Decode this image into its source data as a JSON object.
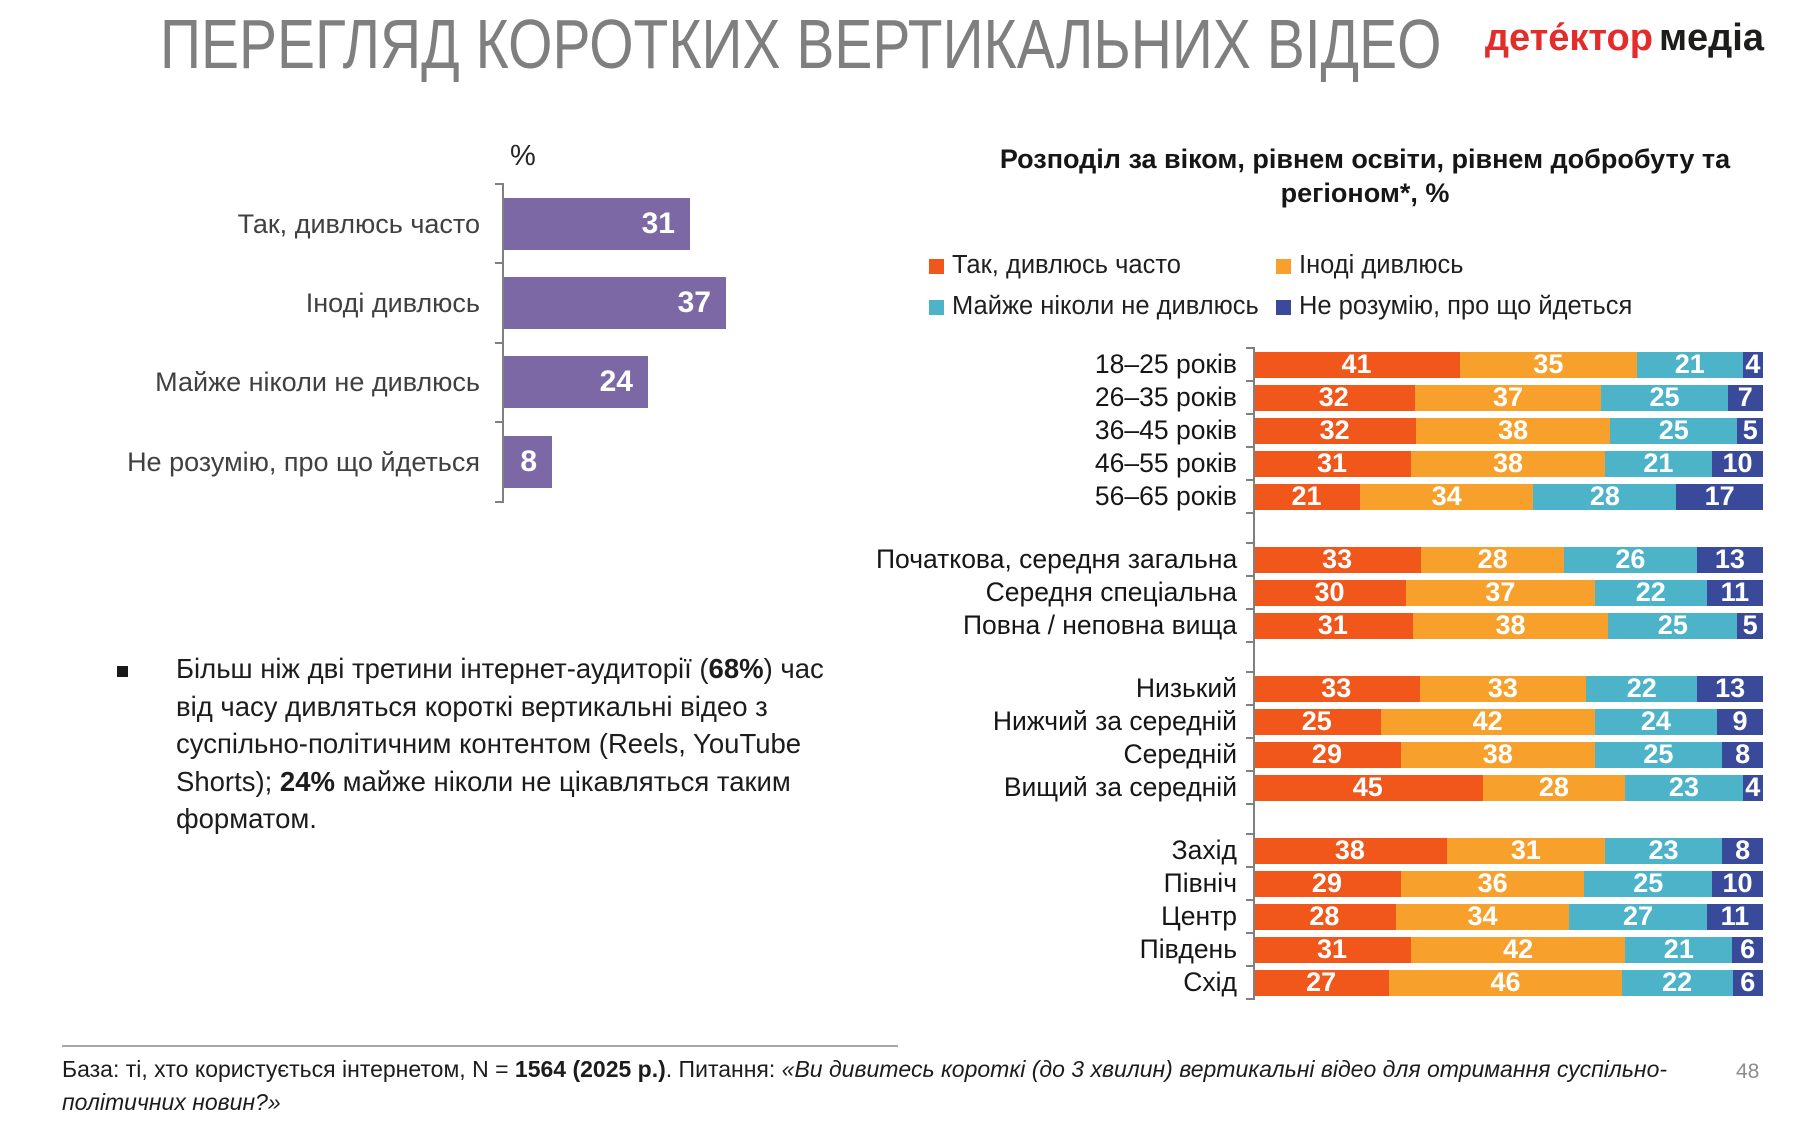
{
  "header": {
    "title": "ПЕРЕГЛЯД КОРОТКИХ ВЕРТИКАЛЬНИХ ВІДЕО",
    "logo": {
      "red_text": "дете́ктор",
      "black_text": "медіа",
      "red": "#e32c2c",
      "black": "#1d1d1b"
    }
  },
  "chart_data": [
    {
      "type": "bar",
      "orientation": "horizontal",
      "axis_label": "%",
      "categories": [
        "Так, дивлюсь часто",
        "Іноді дивлюсь",
        "Майже ніколи не дивлюсь",
        "Не розумію, про що йдеться"
      ],
      "values": [
        31,
        37,
        24,
        8
      ],
      "bar_color": "#7d68a6",
      "value_label_color": "#ffffff",
      "xlim": [
        0,
        42
      ],
      "grid": false
    },
    {
      "type": "bar",
      "subtype": "stacked-horizontal",
      "title": "Розподіл за віком, рівнем освіти, рівнем добробуту та регіоном*, %",
      "legend_position": "top",
      "xlim": [
        0,
        100
      ],
      "series": [
        {
          "name": "Так, дивлюсь часто",
          "color": "#f1561b"
        },
        {
          "name": "Іноді дивлюсь",
          "color": "#f8a02c"
        },
        {
          "name": "Майже ніколи не дивлюсь",
          "color": "#4db3c9"
        },
        {
          "name": "Не розумію, про що йдеться",
          "color": "#3a4a9b"
        }
      ],
      "groups": [
        {
          "categories": [
            "18–25 років",
            "26–35 років",
            "36–45 років",
            "46–55 років",
            "56–65 років"
          ],
          "values": [
            [
              41,
              35,
              21,
              4
            ],
            [
              32,
              37,
              25,
              7
            ],
            [
              32,
              38,
              25,
              5
            ],
            [
              31,
              38,
              21,
              10
            ],
            [
              21,
              34,
              28,
              17
            ]
          ]
        },
        {
          "categories": [
            "Початкова, середня загальна",
            "Середня спеціальна",
            "Повна / неповна  вища"
          ],
          "values": [
            [
              33,
              28,
              26,
              13
            ],
            [
              30,
              37,
              22,
              11
            ],
            [
              31,
              38,
              25,
              5
            ]
          ]
        },
        {
          "categories": [
            "Низький",
            "Нижчий за середній",
            "Середній",
            "Вищий за середній"
          ],
          "values": [
            [
              33,
              33,
              22,
              13
            ],
            [
              25,
              42,
              24,
              9
            ],
            [
              29,
              38,
              25,
              8
            ],
            [
              45,
              28,
              23,
              4
            ]
          ]
        },
        {
          "categories": [
            "Захід",
            "Північ",
            "Центр",
            "Південь",
            "Схід"
          ],
          "values": [
            [
              38,
              31,
              23,
              8
            ],
            [
              29,
              36,
              25,
              10
            ],
            [
              28,
              34,
              27,
              11
            ],
            [
              31,
              42,
              21,
              6
            ],
            [
              27,
              46,
              22,
              6
            ]
          ]
        }
      ]
    }
  ],
  "bullet": {
    "part1": "Більш ніж дві третини інтернет-аудиторії  (",
    "bold1": "68%",
    "part2": ") час від часу дивляться короткі вертикальні відео з суспільно-політичним контентом (Reels, YouTube Shorts); ",
    "bold2": "24%",
    "part3": " майже ніколи не цікавляться таким форматом."
  },
  "footer": {
    "base_label": "База: ті, хто користується інтернетом, N = ",
    "base_value": "1564 (2025 р.)",
    "question_label": ". Питання: ",
    "question_text": "«Ви дивитесь короткі (до 3 хвилин) вертикальні відео для отримання суспільно-політичних новин?»",
    "page_number": "48"
  }
}
